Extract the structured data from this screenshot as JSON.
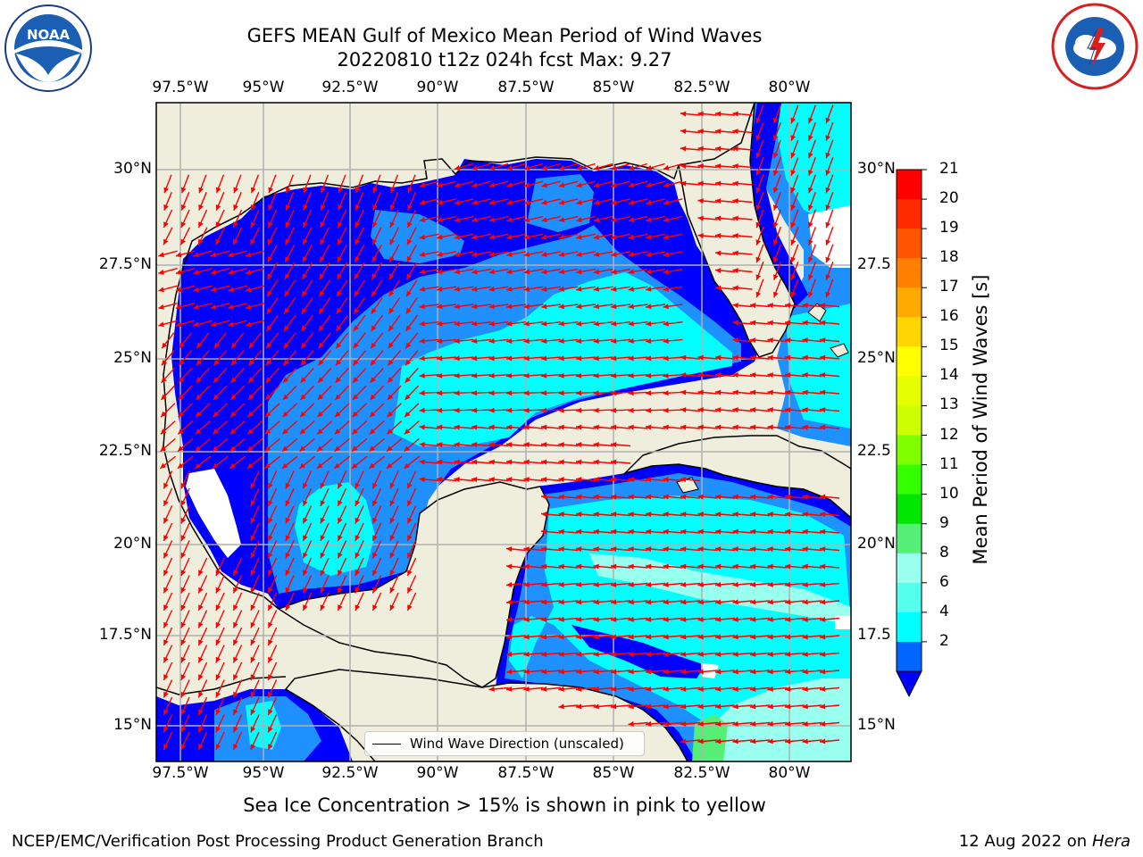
{
  "title_line1": "GEFS MEAN Gulf of Mexico Mean Period of Wind Waves",
  "title_line2": "20220810 t12z 024h fcst   Max: 9.27",
  "lon_labels": [
    "97.5°W",
    "95°W",
    "92.5°W",
    "90°W",
    "87.5°W",
    "85°W",
    "82.5°W",
    "80°W"
  ],
  "lat_labels": [
    "30°N",
    "27.5°N",
    "25°N",
    "22.5°N",
    "20°N",
    "17.5°N",
    "15°N"
  ],
  "lat_labels_right": [
    "30°N",
    "27.5",
    "25°N",
    "22.5",
    "20°N",
    "17.5",
    "15°N"
  ],
  "colorbar": {
    "title": "Mean Period of Wind Waves [s]",
    "ticks": [
      "21",
      "20",
      "19",
      "18",
      "17",
      "16",
      "15",
      "14",
      "13",
      "12",
      "11",
      "10",
      "9",
      "8",
      "6",
      "4",
      "2"
    ],
    "colors": [
      "#ff0000",
      "#ff2a00",
      "#ff5500",
      "#ff8000",
      "#ffaa00",
      "#ffd500",
      "#ffff00",
      "#e6ff00",
      "#ccff00",
      "#80ff00",
      "#33ff00",
      "#00e600",
      "#55ee77",
      "#99ffee",
      "#55ffee",
      "#00ffff",
      "#0066ff",
      "#0000ff"
    ]
  },
  "legend_label": "Wind Wave Direction (unscaled)",
  "note": "Sea Ice Concentration > 15% is shown in pink to yellow",
  "footer_left": "NCEP/EMC/Verification Post Processing Product Generation Branch",
  "footer_right_date": "12 Aug 2022 on",
  "footer_right_host": "Hera",
  "logos": {
    "left": {
      "name": "noaa-logo",
      "text": "NOAA"
    },
    "right": {
      "name": "nws-logo",
      "text": "NATIONAL WEATHER SERVICE"
    }
  },
  "map_colors": {
    "land": "#efeedc",
    "coast": "#000000",
    "grid": "#b0b0b0",
    "arrow": "#ff0000"
  }
}
